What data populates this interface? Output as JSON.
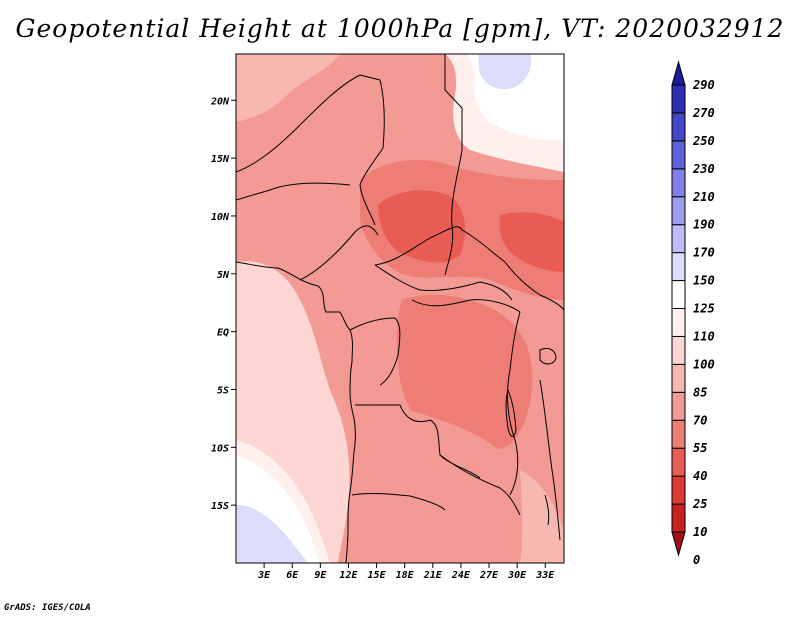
{
  "title": "Geopotential Height at 1000hPa [gpm], VT: 2020032912",
  "credit": "GrADS: IGES/COLA",
  "chart_data": {
    "type": "heatmap",
    "variable": "Geopotential Height at 1000hPa",
    "units": "gpm",
    "valid_time": "2020032912",
    "lon_range": [
      0,
      35
    ],
    "lat_range": [
      -20,
      24
    ],
    "x_ticks": [
      {
        "value": 3,
        "label": "3E"
      },
      {
        "value": 6,
        "label": "6E"
      },
      {
        "value": 9,
        "label": "9E"
      },
      {
        "value": 12,
        "label": "12E"
      },
      {
        "value": 15,
        "label": "15E"
      },
      {
        "value": 18,
        "label": "18E"
      },
      {
        "value": 21,
        "label": "21E"
      },
      {
        "value": 24,
        "label": "24E"
      },
      {
        "value": 27,
        "label": "27E"
      },
      {
        "value": 30,
        "label": "30E"
      },
      {
        "value": 33,
        "label": "33E"
      }
    ],
    "y_ticks": [
      {
        "value": 20,
        "label": "20N"
      },
      {
        "value": 15,
        "label": "15N"
      },
      {
        "value": 10,
        "label": "10N"
      },
      {
        "value": 5,
        "label": "5N"
      },
      {
        "value": 0,
        "label": "EQ"
      },
      {
        "value": -5,
        "label": "5S"
      },
      {
        "value": -10,
        "label": "10S"
      },
      {
        "value": -15,
        "label": "15S"
      }
    ],
    "levels": [
      {
        "label": "0",
        "color": "#a50f15"
      },
      {
        "label": "10",
        "color": "#c9211e"
      },
      {
        "label": "25",
        "color": "#de3a34"
      },
      {
        "label": "40",
        "color": "#e85c54"
      },
      {
        "label": "55",
        "color": "#ee7d75"
      },
      {
        "label": "70",
        "color": "#f29a93"
      },
      {
        "label": "85",
        "color": "#f7b8b2"
      },
      {
        "label": "100",
        "color": "#fbd6d2"
      },
      {
        "label": "110",
        "color": "#fff0ee"
      },
      {
        "label": "125",
        "color": "#ffffff"
      },
      {
        "label": "150",
        "color": "#dcdcfb"
      },
      {
        "label": "170",
        "color": "#bcbcf7"
      },
      {
        "label": "190",
        "color": "#9d9df0"
      },
      {
        "label": "210",
        "color": "#8080e8"
      },
      {
        "label": "230",
        "color": "#6060d8"
      },
      {
        "label": "250",
        "color": "#4545c8"
      },
      {
        "label": "270",
        "color": "#2d2db5"
      },
      {
        "label": "290",
        "color": "#1a1a9a"
      }
    ],
    "regions": [
      {
        "name": "base-land",
        "color": "#f29a93"
      },
      {
        "name": "atlantic-ocean",
        "color": "#fbd6d2"
      },
      {
        "name": "southwest-high",
        "color": "#fff0ee"
      },
      {
        "name": "southwest-high-core",
        "color": "#ffffff"
      },
      {
        "name": "southwest-high-center",
        "color": "#dcdcfb"
      },
      {
        "name": "northeast-high",
        "color": "#fff0ee"
      },
      {
        "name": "northeast-high-core",
        "color": "#ffffff"
      },
      {
        "name": "northeast-high-center",
        "color": "#dcdcfb"
      },
      {
        "name": "northwest-pale",
        "color": "#f7b8b2"
      },
      {
        "name": "central-low",
        "color": "#ee7d75"
      },
      {
        "name": "central-low-core",
        "color": "#e85c54"
      },
      {
        "name": "east-low",
        "color": "#ee7d75"
      },
      {
        "name": "east-low-core",
        "color": "#e85c54"
      },
      {
        "name": "congo-basin",
        "color": "#ee7d75"
      },
      {
        "name": "southern-africa",
        "color": "#f29a93"
      },
      {
        "name": "east-coast-pale",
        "color": "#f7b8b2"
      }
    ]
  }
}
